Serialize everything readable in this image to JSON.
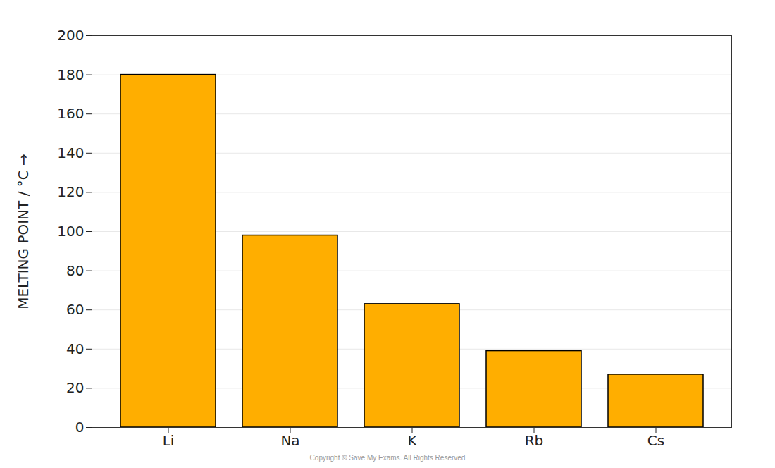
{
  "chart_data": {
    "type": "bar",
    "caption": "Copyright © Save My Exams. All Rights Reserved",
    "y_label": "MELTING POINT / °C",
    "categories": [
      "Li",
      "Na",
      "K",
      "Rb",
      "Cs"
    ],
    "values": [
      180,
      98,
      63,
      39,
      27
    ],
    "color": "#ffae00",
    "ylim": [
      0,
      200
    ],
    "yticks": [
      0,
      20,
      40,
      60,
      80,
      100,
      120,
      140,
      160,
      180,
      200
    ],
    "grid": true
  }
}
